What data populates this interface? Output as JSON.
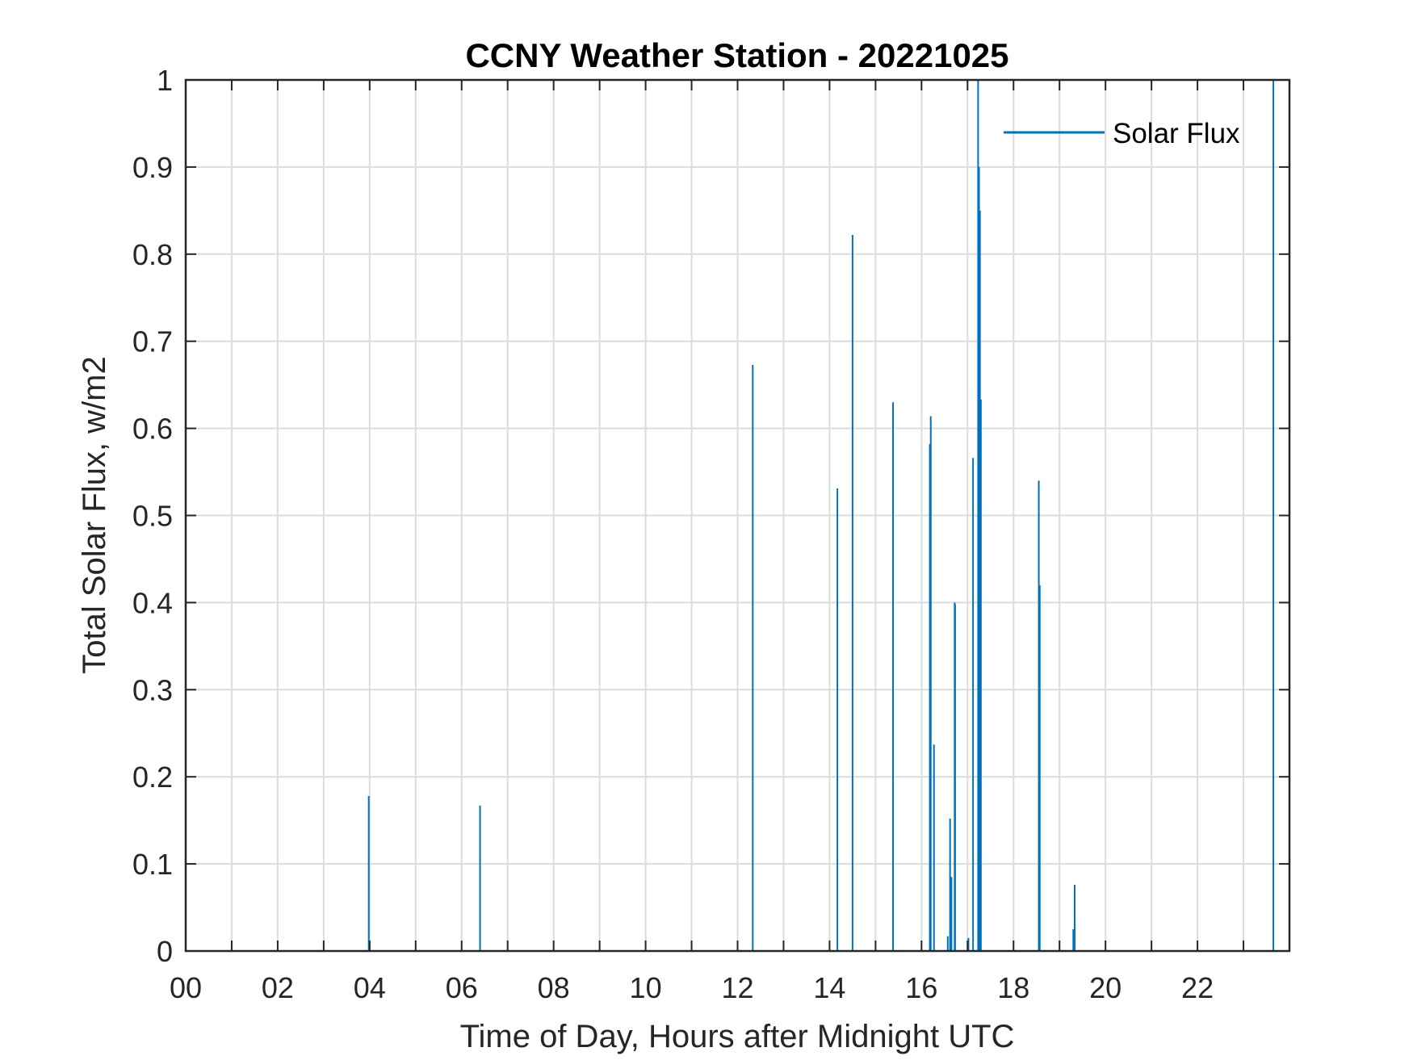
{
  "chart_data": {
    "type": "line",
    "title": "CCNY Weather Station - 20221025",
    "xlabel": "Time of Day, Hours after Midnight UTC",
    "ylabel": "Total Solar Flux, w/m2",
    "xlim": [
      0,
      24
    ],
    "ylim": [
      0,
      1
    ],
    "xticks": [
      "00",
      "02",
      "04",
      "06",
      "08",
      "10",
      "12",
      "14",
      "16",
      "18",
      "20",
      "22"
    ],
    "xtick_values": [
      0,
      2,
      4,
      6,
      8,
      10,
      12,
      14,
      16,
      18,
      20,
      22
    ],
    "yticks": [
      "0",
      "0.1",
      "0.2",
      "0.3",
      "0.4",
      "0.5",
      "0.6",
      "0.7",
      "0.8",
      "0.9",
      "1"
    ],
    "ytick_values": [
      0,
      0.1,
      0.2,
      0.3,
      0.4,
      0.5,
      0.6,
      0.7,
      0.8,
      0.9,
      1
    ],
    "grid": true,
    "legend_position": "top-right",
    "series_color": "#0072BD",
    "series": [
      {
        "name": "Solar Flux",
        "spikes": [
          {
            "x": 3.98,
            "y": 0.178
          },
          {
            "x": 6.4,
            "y": 0.167
          },
          {
            "x": 12.33,
            "y": 0.673
          },
          {
            "x": 14.17,
            "y": 0.531
          },
          {
            "x": 14.5,
            "y": 0.822
          },
          {
            "x": 15.38,
            "y": 0.63
          },
          {
            "x": 16.18,
            "y": 0.582
          },
          {
            "x": 16.2,
            "y": 0.614
          },
          {
            "x": 16.27,
            "y": 0.237
          },
          {
            "x": 16.57,
            "y": 0.017
          },
          {
            "x": 16.62,
            "y": 0.152
          },
          {
            "x": 16.65,
            "y": 0.085
          },
          {
            "x": 16.72,
            "y": 0.4
          },
          {
            "x": 16.73,
            "y": 0.398
          },
          {
            "x": 17.02,
            "y": 0.015
          },
          {
            "x": 17.12,
            "y": 0.566
          },
          {
            "x": 17.23,
            "y": 1.0
          },
          {
            "x": 17.25,
            "y": 0.9
          },
          {
            "x": 17.27,
            "y": 0.85
          },
          {
            "x": 17.29,
            "y": 0.633
          },
          {
            "x": 18.55,
            "y": 0.54
          },
          {
            "x": 18.57,
            "y": 0.42
          },
          {
            "x": 19.3,
            "y": 0.025
          },
          {
            "x": 19.33,
            "y": 0.076
          },
          {
            "x": 23.65,
            "y": 1.0
          }
        ]
      }
    ]
  }
}
